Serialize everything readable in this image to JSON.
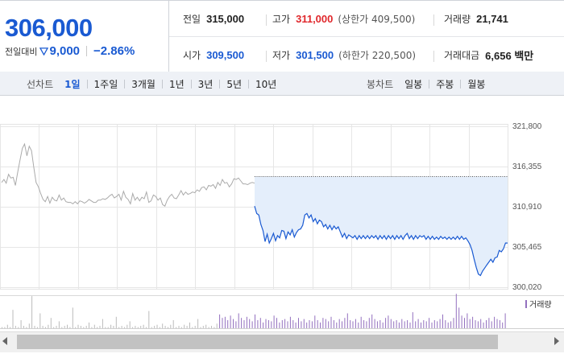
{
  "colors": {
    "up": "#e0282c",
    "down": "#1a5ad2",
    "price_main": "#1a5ad2",
    "prev_line": "#aaaaaa",
    "fill": "#e4eefb",
    "volume": "#9370bf"
  },
  "summary": {
    "price": "306,000",
    "change_label": "전일대비",
    "change_value": "9,000",
    "change_pct": "−2.86%",
    "prev_close_label": "전일",
    "prev_close": "315,000",
    "high_label": "고가",
    "high": "311,000",
    "upper_limit": "(상한가 409,500)",
    "volume_label": "거래량",
    "volume": "21,741",
    "open_label": "시가",
    "open": "309,500",
    "low_label": "저가",
    "low": "301,500",
    "lower_limit": "(하한가 220,500)",
    "amount_label": "거래대금",
    "amount": "6,656 백만"
  },
  "line_tabs": {
    "title": "선차트",
    "items": [
      "1일",
      "1주일",
      "3개월",
      "1년",
      "3년",
      "5년",
      "10년"
    ],
    "active": "1일"
  },
  "candle_tabs": {
    "title": "봉차트",
    "items": [
      "일봉",
      "주봉",
      "월봉"
    ]
  },
  "volume_legend": "거래량",
  "chart_data": {
    "type": "line",
    "y_ticks": [
      "321,800",
      "316,355",
      "310,910",
      "305,465",
      "300,020"
    ],
    "ylim": [
      300020,
      321800
    ],
    "reference_line": 315000,
    "grid": true,
    "series": [
      {
        "values": [
          314200,
          314600,
          314100,
          315300,
          314800,
          314900,
          313800,
          315600,
          317200,
          318800,
          319400,
          317800,
          319100,
          318500,
          316200,
          314200,
          313600,
          312700,
          311900,
          311600,
          312300,
          311400,
          312200,
          311800,
          311700,
          312500,
          311800,
          312100,
          311600,
          311500,
          311500,
          311300,
          311600,
          311300,
          311700,
          311600,
          311400,
          311600,
          311900,
          311700,
          311500,
          311500,
          311800,
          311800,
          312000,
          311900,
          312100,
          312400,
          312600,
          312100,
          312300,
          312600,
          311800,
          313000,
          312200,
          311900,
          311300,
          312700,
          311800,
          312200,
          311700,
          312200,
          312000,
          312900,
          311500,
          311700,
          312500,
          312300,
          311800,
          312100,
          311200,
          311000,
          311800,
          312300,
          312600,
          312100,
          312000,
          312500,
          313100,
          312500,
          312900,
          312600,
          312700,
          312900,
          312800,
          313200,
          313000,
          313500,
          313600,
          313200,
          313800,
          313700,
          313900,
          313400,
          314200,
          313800,
          314600,
          314100,
          314200,
          313600,
          314000,
          314700,
          314600,
          314800,
          314400,
          314000,
          314000,
          313900,
          314100,
          314200,
          314100
        ]
      },
      {
        "values": [
          311000,
          310000,
          309800,
          308500,
          307700,
          306200,
          307200,
          306000,
          306600,
          307300,
          306300,
          307000,
          306700,
          307700,
          307600,
          306600,
          307500,
          307100,
          307800,
          306800,
          307400,
          307800,
          307900,
          308400,
          309800,
          310000,
          309400,
          309800,
          308900,
          309300,
          308600,
          309100,
          308900,
          308200,
          308500,
          307900,
          308400,
          307800,
          308300,
          307900,
          308200,
          307500,
          306800,
          307300,
          306600,
          307100,
          306900,
          306700,
          307000,
          306500,
          307000,
          306600,
          307000,
          306600,
          307000,
          306600,
          307000,
          306700,
          307000,
          306500,
          307000,
          306600,
          307000,
          306500,
          307000,
          306600,
          307000,
          306500,
          307000,
          306600,
          307000,
          306500,
          307000,
          307300,
          306600,
          307000,
          306500,
          307000,
          306600,
          307000,
          306800,
          307000,
          306500,
          306900,
          306500,
          306900,
          306500,
          306800,
          306500,
          306900,
          306600,
          306800,
          306500,
          306800,
          306500,
          306800,
          306500,
          306900,
          306500,
          306900,
          306500,
          306700,
          306300,
          305800,
          305000,
          303800,
          302700,
          301800,
          301600,
          302200,
          302600,
          303000,
          303400,
          303800,
          303400,
          304000,
          304100,
          305000,
          304800,
          305200,
          306000,
          306000
        ]
      }
    ]
  },
  "volume_data": {
    "values": [
      1,
      1,
      3,
      1,
      16,
      2,
      1,
      7,
      2,
      1,
      4,
      28,
      2,
      1,
      13,
      2,
      1,
      3,
      9,
      1,
      2,
      6,
      1,
      2,
      3,
      1,
      18,
      1,
      3,
      2,
      1,
      2,
      5,
      1,
      3,
      1,
      2,
      8,
      1,
      1,
      3,
      2,
      10,
      1,
      2,
      1,
      3,
      6,
      1,
      2,
      1,
      2,
      3,
      1,
      15,
      1,
      2,
      3,
      1,
      4,
      2,
      1,
      3,
      7,
      1,
      2,
      1,
      3,
      2,
      5,
      1,
      2,
      8,
      1,
      2,
      3,
      1,
      2,
      1,
      4,
      12,
      9,
      10,
      7,
      11,
      8,
      6,
      13,
      9,
      7,
      10,
      8,
      6,
      12,
      7,
      9,
      5,
      8,
      7,
      6,
      11,
      9,
      5,
      7,
      8,
      6,
      10,
      7,
      5,
      9,
      6,
      8,
      5,
      7,
      6,
      11,
      7,
      5,
      9,
      8,
      6,
      10,
      7,
      5,
      8,
      6,
      9,
      13,
      7,
      6,
      8,
      5,
      10,
      7,
      6,
      9,
      12,
      8,
      6,
      7,
      5,
      9,
      11,
      8,
      6,
      7,
      5,
      8,
      6,
      7,
      5,
      14,
      6,
      8,
      5,
      7,
      6,
      9,
      5,
      7,
      6,
      8,
      12,
      7,
      5,
      6,
      9,
      30,
      18,
      11,
      9,
      13,
      8,
      10,
      7,
      6,
      8,
      5,
      7,
      9,
      6,
      10,
      8,
      7,
      5,
      13
    ]
  }
}
